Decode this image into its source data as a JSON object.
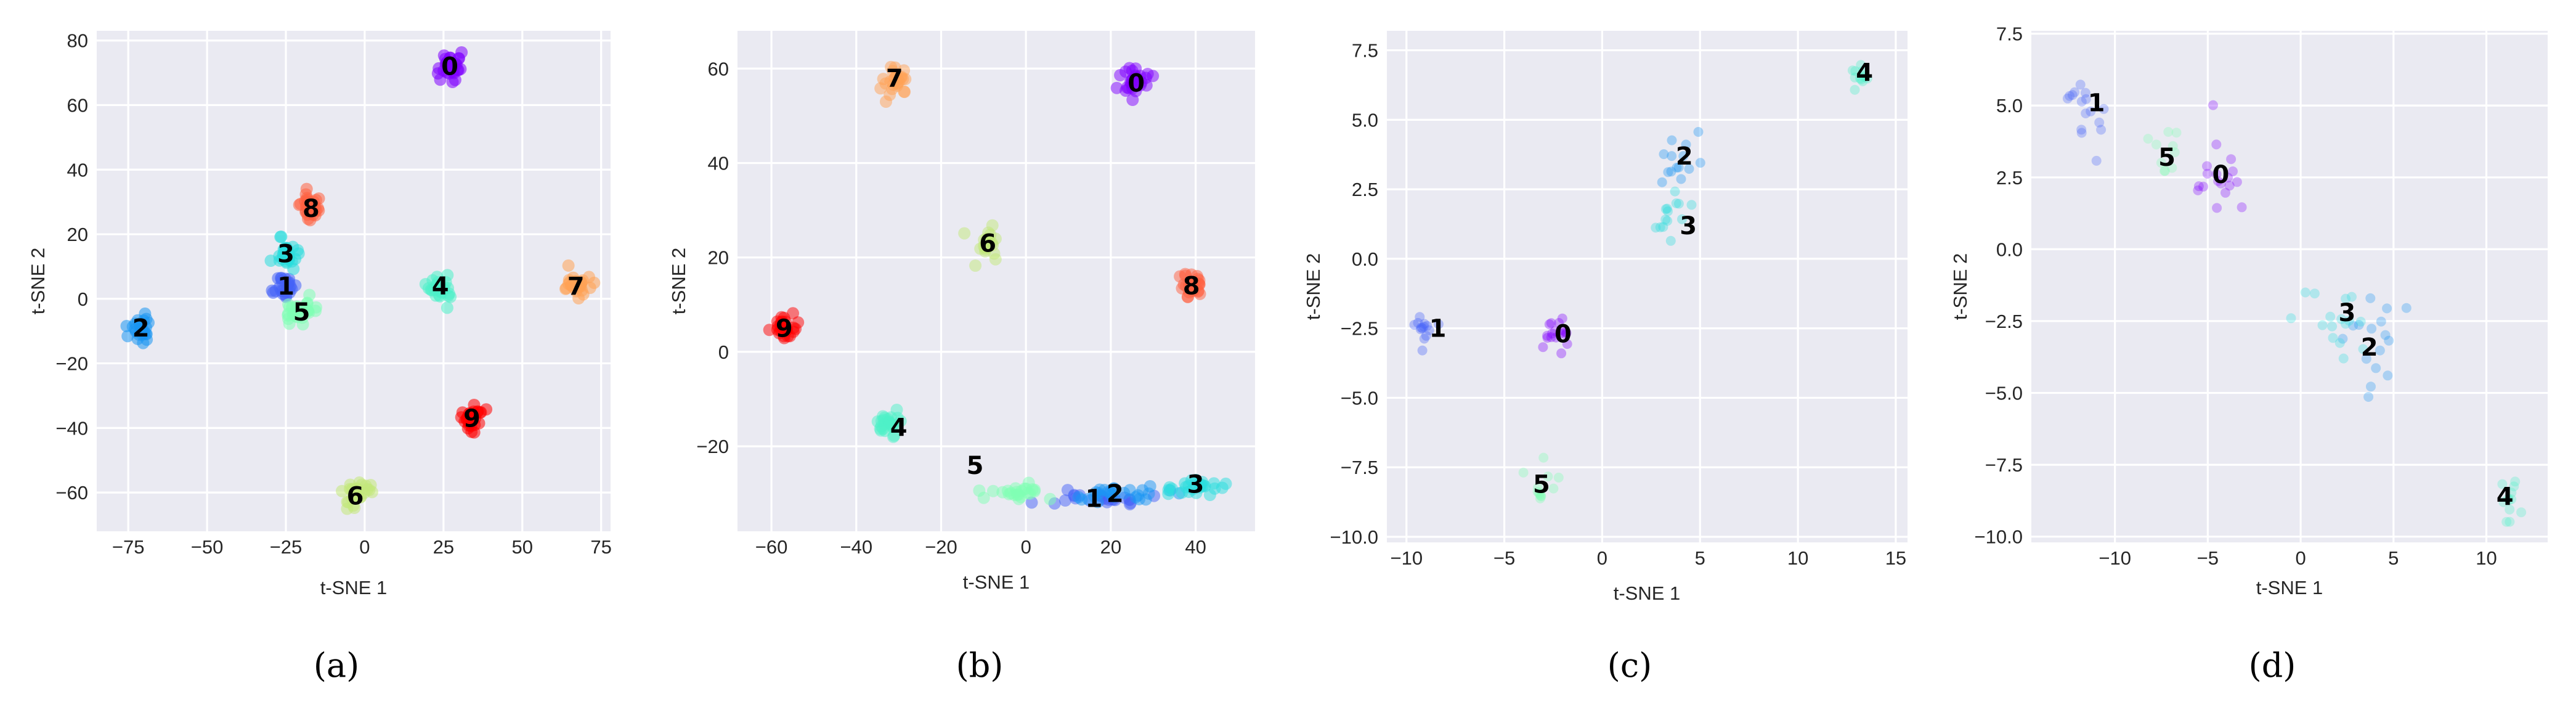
{
  "palette": {
    "0": "#8000ff",
    "1": "#4662f8",
    "2": "#1996f3",
    "3": "#2adddd",
    "4": "#4df1c8",
    "5": "#80ffb4",
    "6": "#c2e87a",
    "7": "#ffa256",
    "8": "#ff6040",
    "9": "#ff0000"
  },
  "chart_data": [
    {
      "type": "scatter",
      "caption": "(a)",
      "xlabel": "t-SNE 1",
      "ylabel": "t-SNE 2",
      "xlim": [
        -85,
        78
      ],
      "ylim": [
        -72,
        83
      ],
      "xticks": [
        -75,
        -50,
        -25,
        0,
        25,
        50,
        75
      ],
      "yticks": [
        -60,
        -40,
        -20,
        0,
        20,
        40,
        60,
        80
      ],
      "clusters": [
        {
          "label": "0",
          "x": 27,
          "y": 72,
          "spread": 3.5,
          "n": 30
        },
        {
          "label": "1",
          "x": -25,
          "y": 4,
          "spread": 3,
          "n": 28
        },
        {
          "label": "2",
          "x": -71,
          "y": -9,
          "spread": 3.5,
          "n": 28
        },
        {
          "label": "3",
          "x": -25,
          "y": 14,
          "spread": 3.5,
          "n": 28
        },
        {
          "label": "4",
          "x": 24,
          "y": 4,
          "spread": 3.5,
          "n": 28
        },
        {
          "label": "5",
          "x": -20,
          "y": -4,
          "spread": 4,
          "n": 28
        },
        {
          "label": "6",
          "x": -3,
          "y": -61,
          "spread": 3.5,
          "n": 28
        },
        {
          "label": "7",
          "x": 67,
          "y": 4,
          "spread": 3,
          "n": 28
        },
        {
          "label": "8",
          "x": -17,
          "y": 28,
          "spread": 3.5,
          "n": 28
        },
        {
          "label": "9",
          "x": 34,
          "y": -37,
          "spread": 3.5,
          "n": 28
        }
      ]
    },
    {
      "type": "scatter",
      "caption": "(b)",
      "xlabel": "t-SNE 1",
      "ylabel": "t-SNE 2",
      "xlim": [
        -68,
        54
      ],
      "ylim": [
        -38,
        68
      ],
      "xticks": [
        -60,
        -40,
        -20,
        0,
        20,
        40
      ],
      "yticks": [
        -20,
        0,
        20,
        40,
        60
      ],
      "clusters": [
        {
          "label": "0",
          "x": 26,
          "y": 57,
          "spread": 2.5,
          "n": 28
        },
        {
          "label": "1",
          "x": 15,
          "y": -31,
          "spread": 3,
          "n": 26,
          "xspread": 9,
          "yspread": 1.5,
          "lx": 16,
          "ly": -31
        },
        {
          "label": "2",
          "x": 22,
          "y": -30,
          "spread": 3,
          "n": 26,
          "xspread": 9,
          "yspread": 1.5,
          "lx": 21,
          "ly": -30
        },
        {
          "label": "3",
          "x": 40,
          "y": -28.5,
          "spread": 3,
          "n": 26,
          "xspread": 6,
          "yspread": 1.3,
          "lx": 40,
          "ly": -28
        },
        {
          "label": "4",
          "x": -32,
          "y": -15,
          "spread": 2.5,
          "n": 26,
          "lx": -30,
          "ly": -16
        },
        {
          "label": "5",
          "x": -3,
          "y": -30,
          "spread": 3,
          "n": 24,
          "xspread": 6,
          "yspread": 1.3,
          "lx": -12,
          "ly": -24
        },
        {
          "label": "6",
          "x": -9,
          "y": 23,
          "spread": 2.5,
          "n": 26,
          "lx": -9,
          "ly": 23
        },
        {
          "label": "7",
          "x": -31,
          "y": 57,
          "spread": 2.5,
          "n": 26,
          "lx": -31,
          "ly": 58
        },
        {
          "label": "8",
          "x": 39,
          "y": 14,
          "spread": 2.5,
          "n": 26,
          "lx": 39,
          "ly": 14
        },
        {
          "label": "9",
          "x": -57,
          "y": 5,
          "spread": 2.5,
          "n": 26,
          "lx": -57,
          "ly": 5
        }
      ]
    },
    {
      "type": "scatter",
      "caption": "(c)",
      "xlabel": "t-SNE 1",
      "ylabel": "t-SNE 2",
      "xlim": [
        -11,
        15.6
      ],
      "ylim": [
        -10.2,
        8.2
      ],
      "xticks": [
        -10,
        -5,
        0,
        5,
        10,
        15
      ],
      "yticks": [
        -10.0,
        -7.5,
        -5.0,
        -2.5,
        0.0,
        2.5,
        5.0,
        7.5
      ],
      "clusters": [
        {
          "label": "0",
          "x": -2.2,
          "y": -2.8,
          "spread": 0.6,
          "n": 18,
          "lx": -2,
          "ly": -2.7
        },
        {
          "label": "1",
          "x": -9.2,
          "y": -2.5,
          "spread": 0.4,
          "n": 14,
          "lx": -8.4,
          "ly": -2.5
        },
        {
          "label": "2",
          "x": 4,
          "y": 3.6,
          "spread": 0.9,
          "n": 14,
          "lx": 4.2,
          "ly": 3.7
        },
        {
          "label": "3",
          "x": 3.5,
          "y": 1.7,
          "spread": 0.9,
          "n": 14,
          "lx": 4.4,
          "ly": 1.2
        },
        {
          "label": "4",
          "x": 13.2,
          "y": 6.6,
          "spread": 0.4,
          "n": 12,
          "lx": 13.4,
          "ly": 6.7
        },
        {
          "label": "5",
          "x": -3.2,
          "y": -8.2,
          "spread": 0.6,
          "n": 12,
          "lx": -3.1,
          "ly": -8.1
        }
      ]
    },
    {
      "type": "scatter",
      "caption": "(d)",
      "xlabel": "t-SNE 1",
      "ylabel": "t-SNE 2",
      "xlim": [
        -14.5,
        13.3
      ],
      "ylim": [
        -10.2,
        7.6
      ],
      "xticks": [
        -10,
        -5,
        0,
        5,
        10
      ],
      "yticks": [
        -10.0,
        -7.5,
        -5.0,
        -2.5,
        0.0,
        2.5,
        5.0,
        7.5
      ],
      "clusters": [
        {
          "label": "0",
          "x": -4,
          "y": 2.5,
          "spread": 1.4,
          "n": 18,
          "lx": -4.3,
          "ly": 2.6
        },
        {
          "label": "1",
          "x": -11.3,
          "y": 5,
          "spread": 1,
          "n": 16,
          "lx": -11,
          "ly": 5.1
        },
        {
          "label": "2",
          "x": 4,
          "y": -3.4,
          "spread": 1.2,
          "n": 16,
          "lx": 3.7,
          "ly": -3.4
        },
        {
          "label": "3",
          "x": 2,
          "y": -2.4,
          "spread": 1.3,
          "n": 16,
          "lx": 2.5,
          "ly": -2.2
        },
        {
          "label": "4",
          "x": 11.2,
          "y": -8.6,
          "spread": 0.7,
          "n": 12,
          "lx": 11,
          "ly": -8.6
        },
        {
          "label": "5",
          "x": -7,
          "y": 3.2,
          "spread": 1,
          "n": 10,
          "lx": -7.2,
          "ly": 3.2
        }
      ]
    }
  ]
}
